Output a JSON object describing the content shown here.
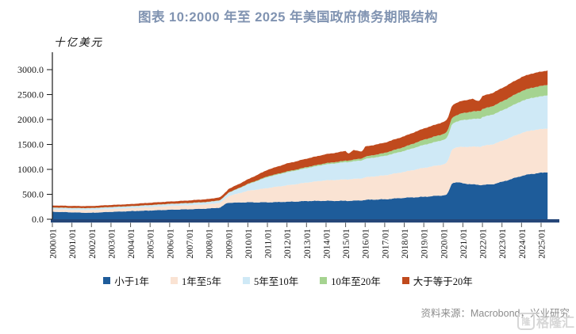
{
  "title": "图表 10:2000 年至 2025 年美国政府债务期限结构",
  "source_text": "资料来源：Macrobond，兴业研究",
  "watermark": {
    "text": "格隆汇",
    "icon_label": "隆"
  },
  "chart_data": {
    "type": "area",
    "stacked": true,
    "title": "图表 10:2000 年至 2025 年美国政府债务期限结构",
    "unit_label": "十亿美元",
    "ylabel": "十亿美元",
    "xlabel": "",
    "ylim": [
      0,
      3000
    ],
    "xlim": [
      2000,
      2025.4
    ],
    "grid": false,
    "legend_position": "bottom",
    "y_ticks": [
      0,
      500,
      1000,
      1500,
      2000,
      2500,
      3000
    ],
    "y_tick_labels": [
      "0.0",
      "500.0",
      "1000.0",
      "1500.0",
      "2000.0",
      "2500.0",
      "3000.0"
    ],
    "x_tick_labels": [
      "2000/01",
      "2001/01",
      "2002/01",
      "2003/01",
      "2004/01",
      "2005/01",
      "2006/01",
      "2007/01",
      "2008/01",
      "2009/01",
      "2010/01",
      "2011/01",
      "2012/01",
      "2013/01",
      "2014/01",
      "2015/01",
      "2016/01",
      "2017/01",
      "2018/01",
      "2019/01",
      "2020/01",
      "2021/01",
      "2022/01",
      "2023/01",
      "2024/01",
      "2025/01"
    ],
    "x": [
      2000,
      2000.5,
      2001,
      2001.5,
      2002,
      2003,
      2004,
      2005,
      2006,
      2007,
      2008,
      2008.6,
      2008.9,
      2009,
      2009.5,
      2010,
      2010.5,
      2011,
      2011.5,
      2012,
      2012.5,
      2013,
      2013.5,
      2014,
      2014.5,
      2015,
      2015.15,
      2015.4,
      2015.85,
      2016,
      2016.5,
      2017,
      2017.5,
      2018,
      2018.5,
      2019,
      2019.5,
      2020,
      2020.2,
      2020.45,
      2020.7,
      2021,
      2021.5,
      2021.8,
      2021.95,
      2022,
      2022.5,
      2023,
      2023.5,
      2024,
      2024.5,
      2025,
      2025.4
    ],
    "series": [
      {
        "name": "小于1年",
        "color": "#1E5C9A",
        "values": [
          150,
          145,
          138,
          132,
          130,
          148,
          163,
          175,
          190,
          200,
          215,
          235,
          320,
          330,
          335,
          340,
          338,
          340,
          345,
          350,
          355,
          365,
          368,
          370,
          368,
          370,
          368,
          372,
          378,
          390,
          395,
          400,
          415,
          430,
          440,
          450,
          465,
          480,
          495,
          730,
          745,
          720,
          700,
          690,
          688,
          690,
          700,
          750,
          810,
          870,
          910,
          930,
          950
        ]
      },
      {
        "name": "1年至5年",
        "color": "#FAE3D3",
        "values": [
          50,
          51,
          52,
          54,
          55,
          58,
          60,
          68,
          75,
          80,
          85,
          95,
          110,
          135,
          180,
          230,
          258,
          285,
          308,
          330,
          350,
          370,
          390,
          410,
          420,
          430,
          432,
          436,
          442,
          450,
          465,
          480,
          500,
          520,
          550,
          580,
          600,
          620,
          640,
          680,
          700,
          730,
          755,
          765,
          770,
          780,
          800,
          820,
          840,
          860,
          872,
          875,
          880
        ]
      },
      {
        "name": "5年至10年",
        "color": "#CFE9F6",
        "values": [
          30,
          31,
          32,
          33,
          35,
          35,
          35,
          38,
          40,
          42,
          45,
          50,
          58,
          65,
          95,
          130,
          175,
          220,
          240,
          260,
          275,
          290,
          305,
          320,
          332,
          345,
          347,
          352,
          362,
          370,
          380,
          390,
          405,
          420,
          440,
          460,
          475,
          490,
          495,
          510,
          515,
          540,
          555,
          562,
          566,
          580,
          595,
          610,
          625,
          640,
          650,
          658,
          665
        ]
      },
      {
        "name": "10年至20年",
        "color": "#A5D390",
        "values": [
          5,
          5,
          5,
          5,
          5,
          5,
          5,
          5,
          5,
          5,
          5,
          5,
          5,
          5,
          8,
          10,
          12,
          15,
          16,
          18,
          19,
          20,
          22,
          25,
          28,
          30,
          31,
          33,
          40,
          45,
          52,
          60,
          70,
          80,
          92,
          105,
          112,
          120,
          122,
          126,
          128,
          140,
          150,
          154,
          157,
          160,
          170,
          180,
          190,
          200,
          204,
          208,
          210
        ]
      },
      {
        "name": "大于等于20年",
        "color": "#C04A1D",
        "values": [
          40,
          40,
          40,
          40,
          40,
          40,
          40,
          45,
          45,
          50,
          55,
          58,
          65,
          70,
          80,
          90,
          110,
          130,
          145,
          160,
          165,
          170,
          175,
          180,
          185,
          195,
          135,
          192,
          138,
          200,
          202,
          205,
          210,
          215,
          220,
          225,
          232,
          240,
          242,
          246,
          248,
          250,
          252,
          195,
          252,
          260,
          265,
          270,
          275,
          280,
          284,
          288,
          285
        ]
      }
    ],
    "axis_colors": {
      "x_axis_band": "#254678",
      "y_axis": "#1a1a1a"
    }
  }
}
